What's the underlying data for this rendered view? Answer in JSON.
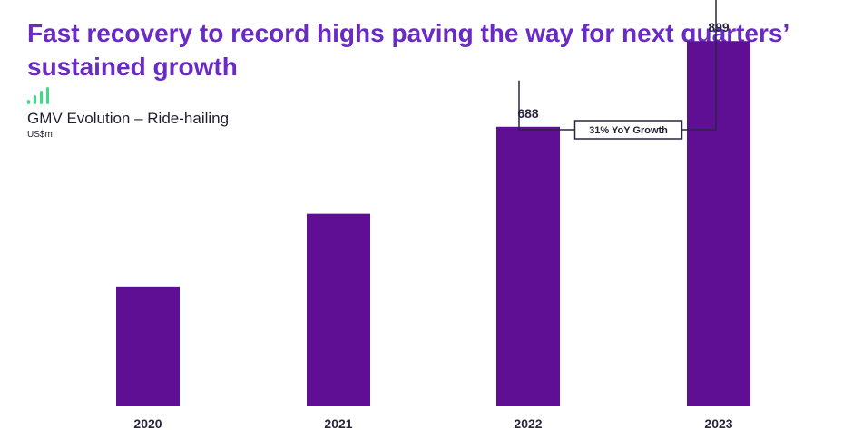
{
  "page": {
    "headline": "Fast recovery to record highs paving the way for next quarters’ sustained growth"
  },
  "chart_data": {
    "type": "bar",
    "title": "GMV Evolution – Ride-hailing",
    "unit": "US$m",
    "xlabel": "",
    "ylabel": "US$m",
    "categories": [
      "2020",
      "2021",
      "2022",
      "2023"
    ],
    "values": [
      295,
      474,
      688,
      899
    ],
    "data_labels": [
      "",
      "",
      "688",
      "899"
    ],
    "ylim": [
      0,
      1000
    ],
    "grid": false,
    "annotation": {
      "text": "31% YoY Growth",
      "from": "2022",
      "to": "2023"
    }
  },
  "colors": {
    "bar": "#5e0f94",
    "headline": "#6a2bc4",
    "icon": "#3ddc84",
    "text": "#1f1f2e"
  },
  "icons": {
    "header_icon": "signal-bars-icon"
  }
}
